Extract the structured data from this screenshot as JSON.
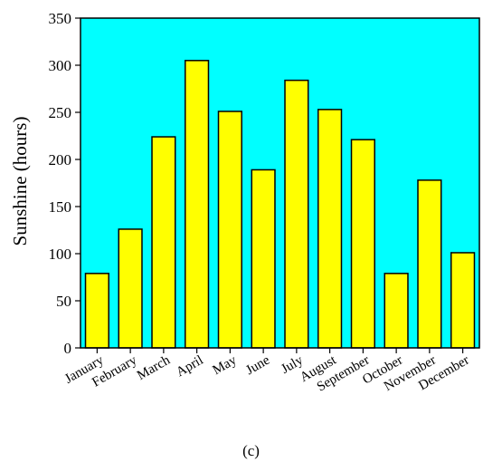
{
  "caption": "(c)",
  "colors": {
    "plot_background": "#00FFFF",
    "bar_fill": "#FFFF00",
    "bar_stroke": "#000000"
  },
  "chart_data": {
    "type": "bar",
    "categories": [
      "January",
      "February",
      "March",
      "April",
      "May",
      "June",
      "July",
      "August",
      "September",
      "October",
      "November",
      "December"
    ],
    "values": [
      79,
      126,
      224,
      305,
      251,
      189,
      284,
      253,
      221,
      79,
      178,
      101
    ],
    "title": "",
    "xlabel": "",
    "ylabel": "Sunshine (hours)",
    "ylim": [
      0,
      350
    ],
    "yticks": [
      0,
      50,
      100,
      150,
      200,
      250,
      300,
      350
    ],
    "grid": false,
    "legend": "none"
  }
}
